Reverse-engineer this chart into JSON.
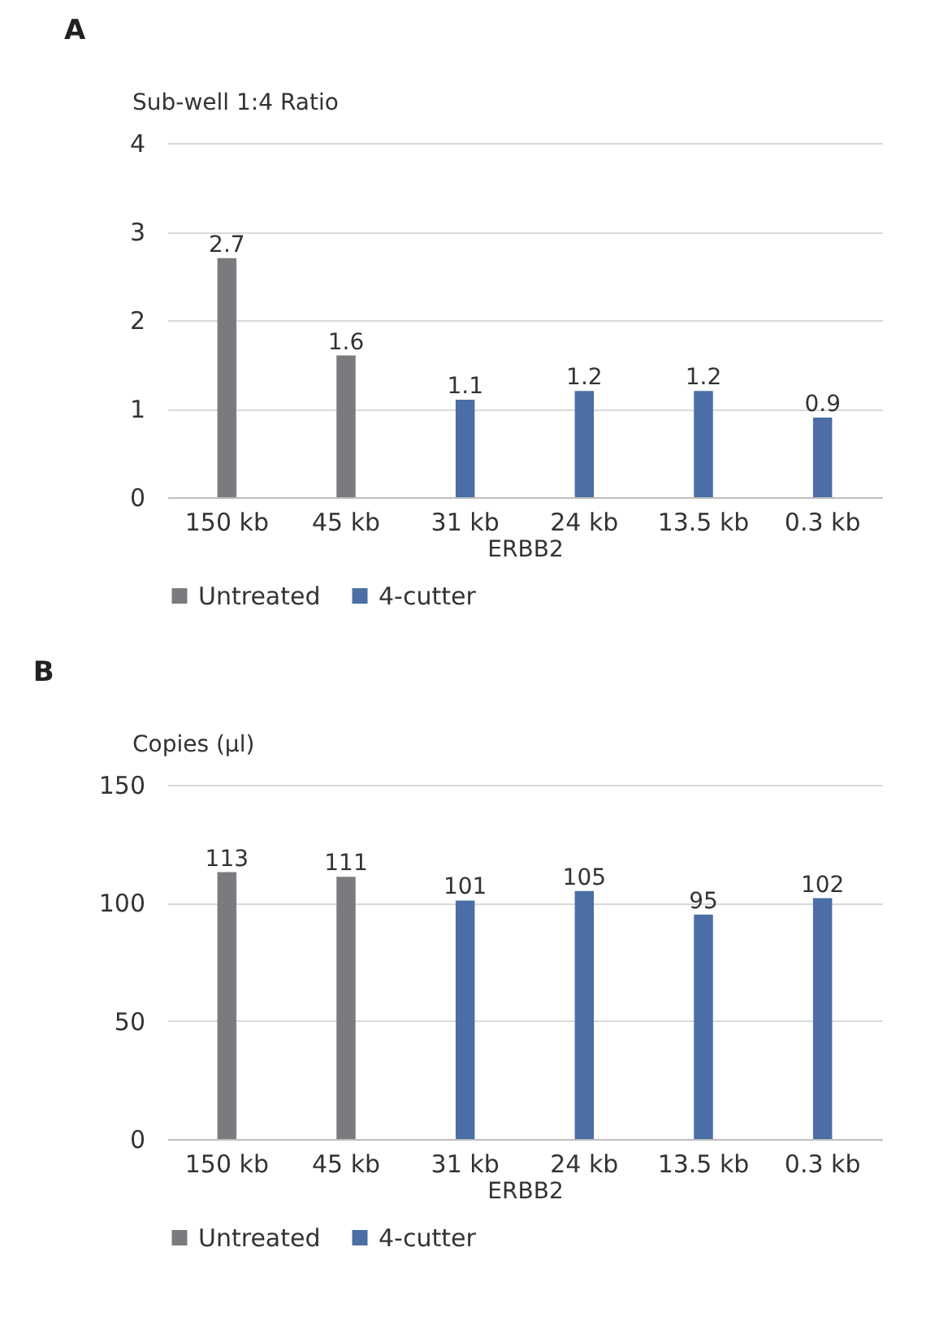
{
  "chart_data": [
    {
      "type": "bar",
      "title": "A",
      "ylabel": "Sub-well 1:4 Ratio",
      "xlabel": "ERBB2",
      "categories": [
        "150 kb",
        "45 kb",
        "31 kb",
        "24 kb",
        "13.5 kb",
        "0.3 kb"
      ],
      "series": [
        {
          "name": "Untreated",
          "color": "#7a7b7e",
          "values": [
            2.7,
            1.6,
            null,
            null,
            null,
            null
          ]
        },
        {
          "name": "4-cutter",
          "color": "#4a6ea5",
          "values": [
            null,
            null,
            1.1,
            1.2,
            1.2,
            0.9
          ]
        }
      ],
      "ylim": [
        0,
        4
      ],
      "yticks": [
        0,
        1,
        2,
        3,
        4
      ],
      "grid": "y",
      "legend": "bottom",
      "data_labels": true
    },
    {
      "type": "bar",
      "title": "B",
      "ylabel": "Copies (µl)",
      "xlabel": "ERBB2",
      "categories": [
        "150 kb",
        "45 kb",
        "31 kb",
        "24 kb",
        "13.5 kb",
        "0.3 kb"
      ],
      "series": [
        {
          "name": "Untreated",
          "color": "#7a7b7e",
          "values": [
            113,
            111,
            null,
            null,
            null,
            null
          ]
        },
        {
          "name": "4-cutter",
          "color": "#4a6ea5",
          "values": [
            null,
            null,
            101,
            105,
            95,
            102
          ]
        }
      ],
      "ylim": [
        0,
        150
      ],
      "yticks": [
        0,
        50,
        100,
        150
      ],
      "grid": "y",
      "legend": "bottom",
      "data_labels": true
    }
  ]
}
